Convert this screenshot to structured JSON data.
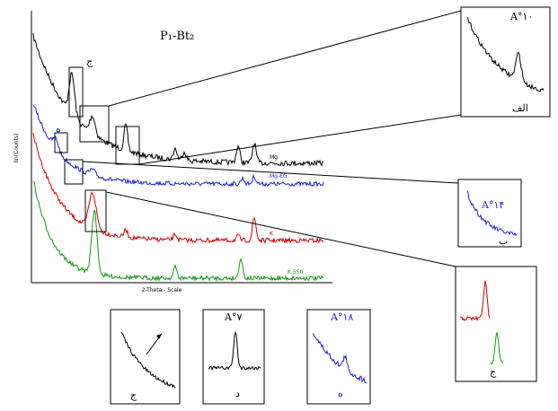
{
  "figure": {
    "title": "P₁-Bt₂",
    "y_axis_label": "lin(Counts)",
    "x_axis_label": "2-Theta - Scale",
    "series_labels": [
      "Mg",
      "Mg-EG",
      "K",
      "K 550"
    ],
    "panel_marks": [
      "ج",
      "ه"
    ],
    "insets": [
      {
        "spacing": "A°١٠",
        "label": "الف"
      },
      {
        "spacing": "A°١۴",
        "label": "ب"
      },
      {
        "label": "ج"
      },
      {
        "label": "ج"
      },
      {
        "spacing": "A°٧",
        "label": "د"
      },
      {
        "spacing": "A°١٨",
        "label": "ه"
      }
    ]
  }
}
